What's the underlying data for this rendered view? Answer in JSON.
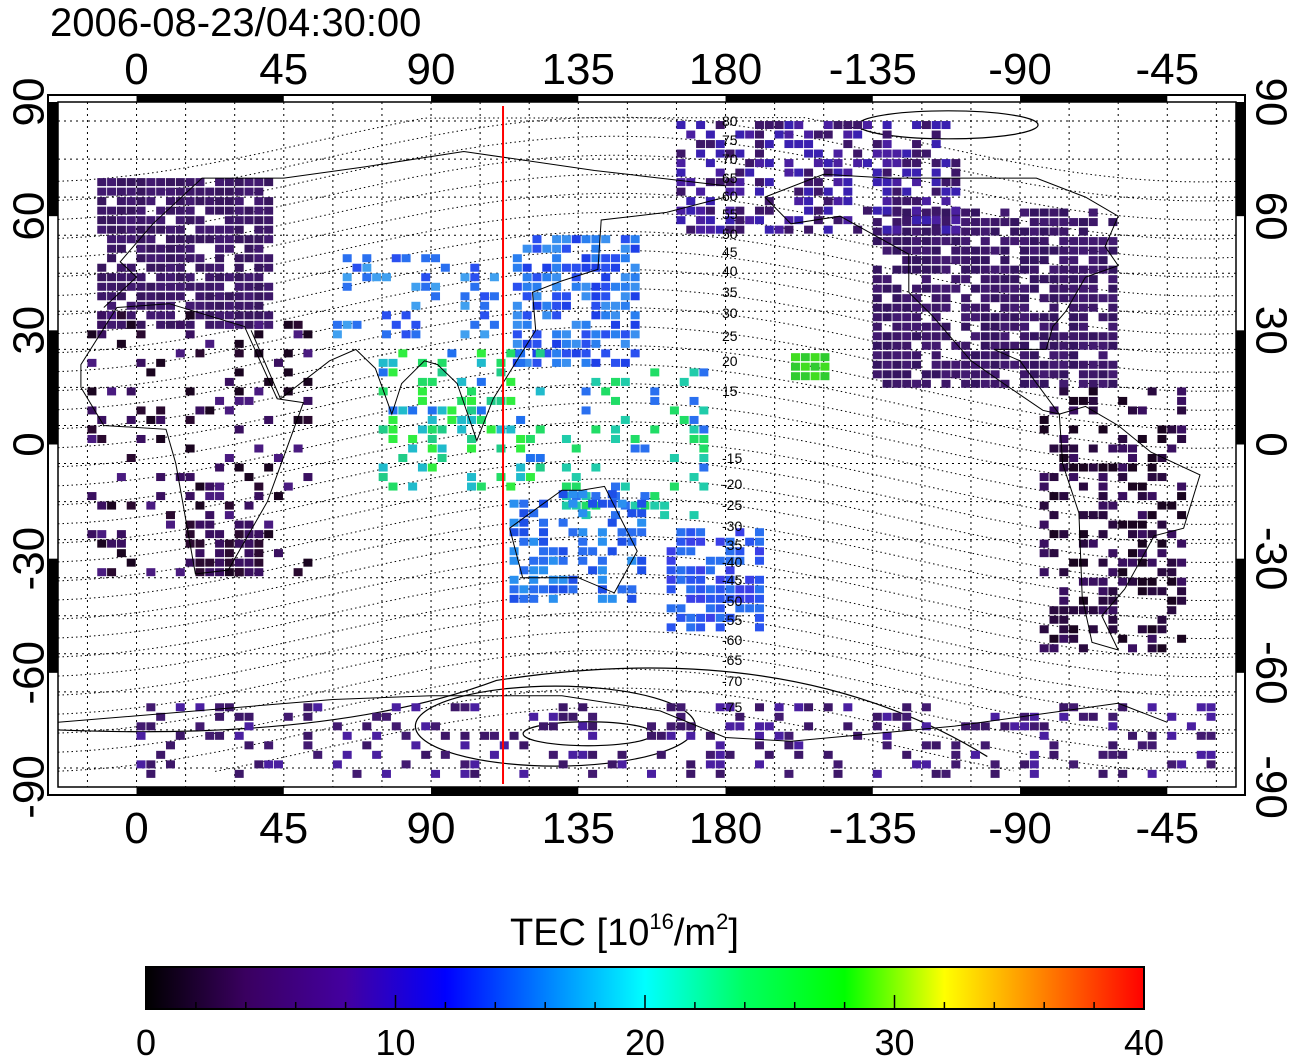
{
  "timestamp": "2006-08-23/04:30:00",
  "map": {
    "top_lon_labels": [
      "0",
      "45",
      "90",
      "135",
      "180",
      "-135",
      "-90",
      "-45"
    ],
    "bottom_lon_labels": [
      "0",
      "45",
      "90",
      "135",
      "180",
      "-135",
      "-90",
      "-45"
    ],
    "left_lat_labels": [
      "90",
      "60",
      "30",
      "0",
      "-30",
      "-60",
      "-90"
    ],
    "right_lat_labels": [
      "90",
      "60",
      "30",
      "0",
      "-30",
      "-60",
      "-90"
    ],
    "lon_ticks": [
      0,
      45,
      90,
      135,
      180,
      225,
      270,
      315
    ],
    "lat_ticks": [
      90,
      60,
      30,
      0,
      -30,
      -60,
      -90
    ],
    "lon_range": [
      -24,
      336
    ],
    "lat_range": [
      -90,
      90
    ],
    "meridian_marker_lon": 112,
    "meridian_marker_color": "#ff0000",
    "magnetic_lat_labels_north": [
      "80",
      "75",
      "70",
      "65",
      "60",
      "55",
      "50",
      "45",
      "40",
      "35",
      "30",
      "25",
      "20",
      "15"
    ],
    "magnetic_lat_labels_south": [
      "-15",
      "-20",
      "-25",
      "-30",
      "-35",
      "-40",
      "-45",
      "-50",
      "-55",
      "-60",
      "-65",
      "-70",
      "-75"
    ]
  },
  "colorbar": {
    "title_main": "TEC  [10",
    "title_sup": "16",
    "title_mid": "/m",
    "title_sup2": "2",
    "title_end": "]",
    "tick_labels": [
      "0",
      "10",
      "20",
      "30",
      "40"
    ],
    "range": [
      0,
      40
    ],
    "stops": [
      "#000000",
      "#3a0060",
      "#4400a0",
      "#0000ff",
      "#0080ff",
      "#00ffff",
      "#00ff60",
      "#00ff00",
      "#ffff00",
      "#ff8000",
      "#ff0000"
    ]
  },
  "tec_regions": [
    {
      "name": "europe",
      "color": "#3d1768"
    },
    {
      "name": "north-america",
      "color": "#3d1768"
    },
    {
      "name": "east-asia",
      "color": "#2a50f0"
    },
    {
      "name": "southeast-asia",
      "color": "#22dd66"
    },
    {
      "name": "australia",
      "color": "#2a6ef0"
    },
    {
      "name": "new-zealand",
      "color": "#2a55f0"
    },
    {
      "name": "africa",
      "color": "#2a0a30"
    },
    {
      "name": "south-america",
      "color": "#2a0a40"
    },
    {
      "name": "antarctica",
      "color": "#3d1768"
    },
    {
      "name": "hawaii",
      "color": "#40dd20"
    }
  ]
}
